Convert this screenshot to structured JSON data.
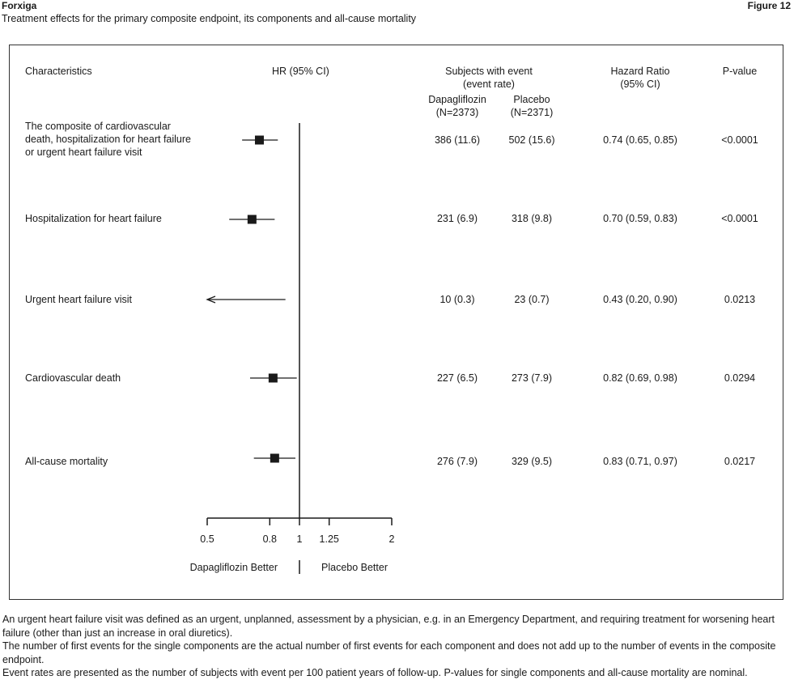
{
  "header": {
    "brand": "Forxiga",
    "figure_label": "Figure 12",
    "subtitle": "Treatment effects for the primary composite endpoint, its components and all-cause mortality"
  },
  "columns": {
    "characteristics": "Characteristics",
    "hr_ci": "HR (95% CI)",
    "subjects_line1": "Subjects with event",
    "subjects_line2": "(event rate)",
    "dapa_name": "Dapagliflozin",
    "dapa_n": "(N=2373)",
    "placebo_name": "Placebo",
    "placebo_n": "(N=2371)",
    "hazard_line1": "Hazard Ratio",
    "hazard_line2": "(95% CI)",
    "pvalue": "P-value"
  },
  "chart_data": {
    "type": "forest",
    "x_scale": "log",
    "xlim": [
      0.5,
      2
    ],
    "reference_line": 1,
    "x_ticks": [
      {
        "value": 0.5,
        "label": "0.5"
      },
      {
        "value": 0.8,
        "label": "0.8"
      },
      {
        "value": 1,
        "label": "1"
      },
      {
        "value": 1.25,
        "label": "1.25"
      },
      {
        "value": 2,
        "label": "2"
      }
    ],
    "left_direction_label": "Dapagliflozin Better",
    "right_direction_label": "Placebo Better",
    "rows": [
      {
        "label": "The composite of cardiovascular death, hospitalization for heart failure or urgent heart failure visit",
        "hr": 0.74,
        "lower": 0.65,
        "upper": 0.85,
        "dapa_event": "386 (11.6)",
        "placebo_event": "502 (15.6)",
        "hr_text": "0.74 (0.65, 0.85)",
        "p_value": "<0.0001"
      },
      {
        "label": "Hospitalization for heart failure",
        "hr": 0.7,
        "lower": 0.59,
        "upper": 0.83,
        "dapa_event": "231 (6.9)",
        "placebo_event": "318 (9.8)",
        "hr_text": "0.70 (0.59, 0.83)",
        "p_value": "<0.0001"
      },
      {
        "label": "Urgent heart failure visit",
        "hr": 0.43,
        "lower": 0.2,
        "upper": 0.9,
        "dapa_event": "10 (0.3)",
        "placebo_event": "23 (0.7)",
        "hr_text": "0.43 (0.20, 0.90)",
        "p_value": "0.0213"
      },
      {
        "label": "Cardiovascular death",
        "hr": 0.82,
        "lower": 0.69,
        "upper": 0.98,
        "dapa_event": "227 (6.5)",
        "placebo_event": "273 (7.9)",
        "hr_text": "0.82 (0.69, 0.98)",
        "p_value": "0.0294"
      },
      {
        "label": "All-cause mortality",
        "hr": 0.83,
        "lower": 0.71,
        "upper": 0.97,
        "dapa_event": "276 (7.9)",
        "placebo_event": "329 (9.5)",
        "hr_text": "0.83 (0.71, 0.97)",
        "p_value": "0.0217"
      }
    ]
  },
  "footnotes": [
    "An urgent heart failure visit was defined as an urgent, unplanned, assessment by a physician, e.g. in an Emergency Department, and requiring treatment for worsening heart failure (other than just an increase in oral diuretics).",
    "The number of first events for the single components are the actual number of first events for each component and does not add up to the number of events in the composite endpoint.",
    "Event rates are presented as the number of subjects with event per 100 patient years of follow-up. P-values for single components and all-cause mortality are nominal."
  ]
}
